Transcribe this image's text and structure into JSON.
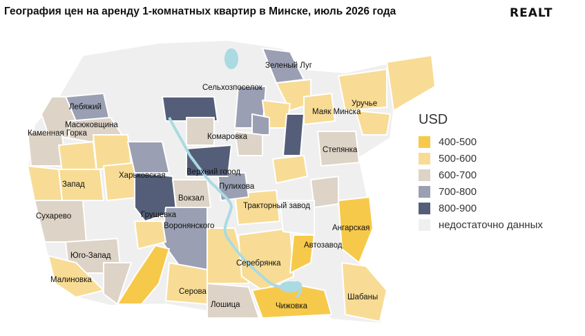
{
  "title": "География цен на аренду 1-комнатных квартир в Минске, июль 2026 года",
  "logo": "REALT",
  "legend": {
    "title": "USD",
    "items": [
      {
        "label": "400-500",
        "color": "#f7c94b"
      },
      {
        "label": "500-600",
        "color": "#f8dc95"
      },
      {
        "label": "600-700",
        "color": "#ddd3c6"
      },
      {
        "label": "700-800",
        "color": "#9a9fb3"
      },
      {
        "label": "800-900",
        "color": "#545e79"
      },
      {
        "label": "недостаточно данных",
        "color": "#efefef"
      }
    ]
  },
  "districts": {
    "zeleny_lug": "Зеленый Луг",
    "selhozposelok": "Сельхозпоселок",
    "lebyazhiy": "Лебяжий",
    "masyukovshchina": "Масюковщина",
    "kamennaya_gorka": "Каменная Горка",
    "mayak_minska": "Маяк Минска",
    "uruchye": "Уручье",
    "komarovka": "Комаровка",
    "stepyanka": "Степянка",
    "verkhniy_gorod": "Верхний город",
    "kharkovskaya": "Харьковская",
    "zapad": "Запад",
    "pulikhova": "Пулихова",
    "vokzal": "Вокзал",
    "traktorny_zavod": "Тракторный завод",
    "angarskaya": "Ангарская",
    "sukharevo": "Сухарево",
    "grushevka": "Грушевка",
    "voronyanskogo": "Воронянского",
    "yugo_zapad": "Юго-Запад",
    "avtozavod": "Автозавод",
    "serebryanka": "Серебрянка",
    "malinovka": "Малиновка",
    "serova": "Серова",
    "shabany": "Шабаны",
    "loshitsa": "Лошица",
    "chizhovka": "Чижовка"
  }
}
